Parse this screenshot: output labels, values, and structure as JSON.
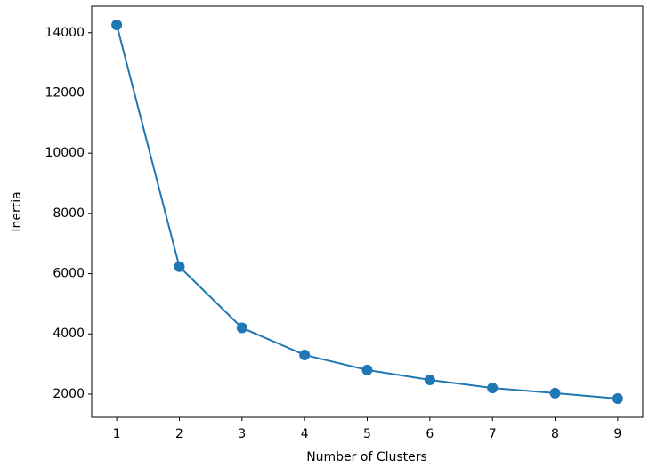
{
  "chart_data": {
    "type": "line",
    "xlabel": "Number of Clusters",
    "ylabel": "Inertia",
    "x": [
      1,
      2,
      3,
      4,
      5,
      6,
      7,
      8,
      9
    ],
    "series": [
      {
        "color": "#1f77b4",
        "values": [
          14260,
          6230,
          4200,
          3300,
          2800,
          2470,
          2200,
          2030,
          1850
        ]
      }
    ],
    "xlim": [
      0.6,
      9.4
    ],
    "xticks": [
      1,
      2,
      3,
      4,
      5,
      6,
      7,
      8,
      9
    ],
    "ylim": [
      1230,
      14880
    ],
    "yticks": [
      2000,
      4000,
      6000,
      8000,
      10000,
      12000,
      14000
    ],
    "marker": "o",
    "grid": false
  }
}
